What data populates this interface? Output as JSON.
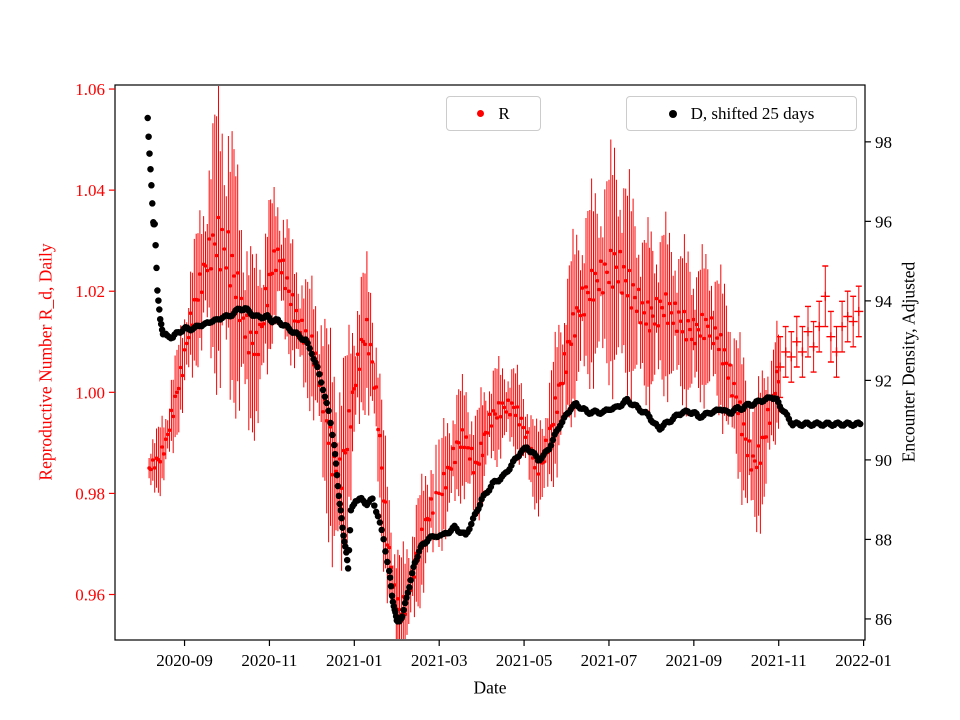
{
  "figure": {
    "background": "#ffffff"
  },
  "chart_data": {
    "type": "scatter",
    "title": "",
    "grid": false,
    "legends": [
      {
        "label": "R",
        "position": "upper-center"
      },
      {
        "label": "D, shifted 25 days",
        "position": "upper-right"
      }
    ],
    "x_axis": {
      "label": "Date",
      "ticks": [
        "2020-09",
        "2020-11",
        "2021-01",
        "2021-03",
        "2021-05",
        "2021-07",
        "2021-09",
        "2021-11",
        "2022-01"
      ],
      "range": [
        "2020-07-12",
        "2022-01-02"
      ]
    },
    "left_axis": {
      "label": "Reproductive Number R_d, Daily",
      "color": "#ff0000",
      "ticks": [
        0.96,
        0.98,
        1.0,
        1.02,
        1.04,
        1.06
      ],
      "range": [
        0.951,
        1.0608
      ]
    },
    "right_axis": {
      "label": "Encounter Density, Adjusted",
      "color": "#000000",
      "ticks": [
        86,
        88,
        90,
        92,
        94,
        96,
        98
      ],
      "range": [
        85.47,
        99.43
      ]
    },
    "series_r": {
      "legend_label": "R",
      "color": "#ff0000",
      "marker": "point-with-errorbars",
      "plus_marker_from": "2021-11-01",
      "points": [
        [
          "2020-08-06",
          0.985,
          0.004
        ],
        [
          "2020-08-10",
          0.986,
          0.004
        ],
        [
          "2020-08-14",
          0.987,
          0.005
        ],
        [
          "2020-08-18",
          0.99,
          0.005
        ],
        [
          "2020-08-22",
          0.995,
          0.006
        ],
        [
          "2020-08-26",
          1.0,
          0.006
        ],
        [
          "2020-08-30",
          1.005,
          0.007
        ],
        [
          "2020-09-04",
          1.012,
          0.008
        ],
        [
          "2020-09-08",
          1.017,
          0.009
        ],
        [
          "2020-09-12",
          1.021,
          0.01
        ],
        [
          "2020-09-16",
          1.025,
          0.012
        ],
        [
          "2020-09-20",
          1.028,
          0.015
        ],
        [
          "2020-09-24",
          1.03,
          0.02
        ],
        [
          "2020-09-28",
          1.029,
          0.022
        ],
        [
          "2020-10-02",
          1.027,
          0.02
        ],
        [
          "2020-10-06",
          1.023,
          0.018
        ],
        [
          "2020-10-10",
          1.018,
          0.016
        ],
        [
          "2020-10-14",
          1.013,
          0.014
        ],
        [
          "2020-10-18",
          1.01,
          0.013
        ],
        [
          "2020-10-22",
          1.009,
          0.012
        ],
        [
          "2020-10-26",
          1.013,
          0.012
        ],
        [
          "2020-10-30",
          1.02,
          0.012
        ],
        [
          "2020-11-03",
          1.025,
          0.01
        ],
        [
          "2020-11-07",
          1.027,
          0.009
        ],
        [
          "2020-11-11",
          1.024,
          0.009
        ],
        [
          "2020-11-15",
          1.02,
          0.009
        ],
        [
          "2020-11-19",
          1.016,
          0.008
        ],
        [
          "2020-11-23",
          1.013,
          0.008
        ],
        [
          "2020-11-27",
          1.011,
          0.008
        ],
        [
          "2020-12-01",
          1.009,
          0.009
        ],
        [
          "2020-12-05",
          1.005,
          0.01
        ],
        [
          "2020-12-09",
          0.999,
          0.012
        ],
        [
          "2020-12-13",
          0.992,
          0.014
        ],
        [
          "2020-12-17",
          0.985,
          0.016
        ],
        [
          "2020-12-21",
          0.983,
          0.016
        ],
        [
          "2020-12-25",
          0.988,
          0.014
        ],
        [
          "2020-12-29",
          0.996,
          0.012
        ],
        [
          "2021-01-02",
          1.003,
          0.011
        ],
        [
          "2021-01-06",
          1.009,
          0.01
        ],
        [
          "2021-01-10",
          1.012,
          0.01
        ],
        [
          "2021-01-14",
          1.006,
          0.01
        ],
        [
          "2021-01-18",
          0.995,
          0.01
        ],
        [
          "2021-01-22",
          0.98,
          0.01
        ],
        [
          "2021-01-26",
          0.968,
          0.009
        ],
        [
          "2021-01-30",
          0.96,
          0.008
        ],
        [
          "2021-02-03",
          0.957,
          0.008
        ],
        [
          "2021-02-07",
          0.958,
          0.008
        ],
        [
          "2021-02-11",
          0.962,
          0.008
        ],
        [
          "2021-02-15",
          0.967,
          0.008
        ],
        [
          "2021-02-19",
          0.971,
          0.008
        ],
        [
          "2021-02-23",
          0.975,
          0.008
        ],
        [
          "2021-02-27",
          0.978,
          0.008
        ],
        [
          "2021-03-03",
          0.981,
          0.008
        ],
        [
          "2021-03-07",
          0.984,
          0.008
        ],
        [
          "2021-03-11",
          0.987,
          0.008
        ],
        [
          "2021-03-15",
          0.99,
          0.008
        ],
        [
          "2021-03-19",
          0.991,
          0.008
        ],
        [
          "2021-03-23",
          0.988,
          0.008
        ],
        [
          "2021-03-27",
          0.985,
          0.008
        ],
        [
          "2021-03-31",
          0.988,
          0.008
        ],
        [
          "2021-04-04",
          0.992,
          0.007
        ],
        [
          "2021-04-08",
          0.995,
          0.007
        ],
        [
          "2021-04-12",
          0.996,
          0.007
        ],
        [
          "2021-04-16",
          0.997,
          0.006
        ],
        [
          "2021-04-20",
          0.997,
          0.006
        ],
        [
          "2021-04-24",
          0.997,
          0.006
        ],
        [
          "2021-04-28",
          0.995,
          0.006
        ],
        [
          "2021-05-02",
          0.992,
          0.006
        ],
        [
          "2021-05-06",
          0.988,
          0.006
        ],
        [
          "2021-05-10",
          0.985,
          0.006
        ],
        [
          "2021-05-14",
          0.986,
          0.007
        ],
        [
          "2021-05-18",
          0.99,
          0.008
        ],
        [
          "2021-05-22",
          0.995,
          0.009
        ],
        [
          "2021-05-26",
          1.0,
          0.01
        ],
        [
          "2021-05-30",
          1.005,
          0.011
        ],
        [
          "2021-06-03",
          1.01,
          0.012
        ],
        [
          "2021-06-07",
          1.014,
          0.012
        ],
        [
          "2021-06-11",
          1.017,
          0.012
        ],
        [
          "2021-06-15",
          1.019,
          0.013
        ],
        [
          "2021-06-19",
          1.021,
          0.013
        ],
        [
          "2021-06-23",
          1.022,
          0.013
        ],
        [
          "2021-06-27",
          1.023,
          0.014
        ],
        [
          "2021-07-01",
          1.024,
          0.015
        ],
        [
          "2021-07-05",
          1.025,
          0.017
        ],
        [
          "2021-07-09",
          1.024,
          0.016
        ],
        [
          "2021-07-13",
          1.022,
          0.015
        ],
        [
          "2021-07-17",
          1.02,
          0.014
        ],
        [
          "2021-07-21",
          1.018,
          0.013
        ],
        [
          "2021-07-25",
          1.016,
          0.012
        ],
        [
          "2021-07-29",
          1.015,
          0.012
        ],
        [
          "2021-08-02",
          1.015,
          0.012
        ],
        [
          "2021-08-06",
          1.016,
          0.012
        ],
        [
          "2021-08-10",
          1.017,
          0.012
        ],
        [
          "2021-08-14",
          1.016,
          0.011
        ],
        [
          "2021-08-18",
          1.015,
          0.011
        ],
        [
          "2021-08-22",
          1.014,
          0.011
        ],
        [
          "2021-08-26",
          1.013,
          0.011
        ],
        [
          "2021-08-30",
          1.012,
          0.01
        ],
        [
          "2021-09-03",
          1.012,
          0.01
        ],
        [
          "2021-09-07",
          1.013,
          0.01
        ],
        [
          "2021-09-11",
          1.013,
          0.01
        ],
        [
          "2021-09-15",
          1.012,
          0.01
        ],
        [
          "2021-09-19",
          1.01,
          0.01
        ],
        [
          "2021-09-23",
          1.007,
          0.01
        ],
        [
          "2021-09-27",
          1.003,
          0.01
        ],
        [
          "2021-10-01",
          0.999,
          0.01
        ],
        [
          "2021-10-05",
          0.994,
          0.01
        ],
        [
          "2021-10-09",
          0.989,
          0.01
        ],
        [
          "2021-10-13",
          0.986,
          0.01
        ],
        [
          "2021-10-17",
          0.987,
          0.01
        ],
        [
          "2021-10-21",
          0.991,
          0.01
        ],
        [
          "2021-10-25",
          0.996,
          0.009
        ],
        [
          "2021-10-29",
          1.001,
          0.008
        ],
        [
          "2021-11-02",
          1.005,
          0.006
        ],
        [
          "2021-11-06",
          1.008,
          0.005
        ],
        [
          "2021-11-10",
          1.007,
          0.005
        ],
        [
          "2021-11-14",
          1.01,
          0.005
        ],
        [
          "2021-11-18",
          1.008,
          0.005
        ],
        [
          "2021-11-22",
          1.012,
          0.005
        ],
        [
          "2021-11-26",
          1.009,
          0.005
        ],
        [
          "2021-11-30",
          1.013,
          0.005
        ],
        [
          "2021-12-04",
          1.019,
          0.006
        ],
        [
          "2021-12-08",
          1.011,
          0.005
        ],
        [
          "2021-12-12",
          1.008,
          0.005
        ],
        [
          "2021-12-16",
          1.013,
          0.005
        ],
        [
          "2021-12-20",
          1.015,
          0.005
        ],
        [
          "2021-12-24",
          1.014,
          0.005
        ],
        [
          "2021-12-28",
          1.016,
          0.005
        ]
      ]
    },
    "series_d": {
      "legend_label": "D, shifted 25 days",
      "color": "#000000",
      "marker": "point",
      "points": [
        [
          "2020-08-05",
          98.6
        ],
        [
          "2020-08-07",
          97.3
        ],
        [
          "2020-08-09",
          96.0
        ],
        [
          "2020-08-10",
          95.9
        ],
        [
          "2020-08-12",
          94.3
        ],
        [
          "2020-08-14",
          93.5
        ],
        [
          "2020-08-16",
          93.2
        ],
        [
          "2020-08-19",
          93.1
        ],
        [
          "2020-08-23",
          93.1
        ],
        [
          "2020-08-27",
          93.2
        ],
        [
          "2020-08-31",
          93.3
        ],
        [
          "2020-09-04",
          93.3
        ],
        [
          "2020-09-08",
          93.3
        ],
        [
          "2020-09-12",
          93.4
        ],
        [
          "2020-09-16",
          93.4
        ],
        [
          "2020-09-20",
          93.5
        ],
        [
          "2020-09-24",
          93.5
        ],
        [
          "2020-09-28",
          93.6
        ],
        [
          "2020-10-02",
          93.6
        ],
        [
          "2020-10-06",
          93.7
        ],
        [
          "2020-10-10",
          93.8
        ],
        [
          "2020-10-14",
          93.8
        ],
        [
          "2020-10-18",
          93.7
        ],
        [
          "2020-10-22",
          93.6
        ],
        [
          "2020-10-26",
          93.6
        ],
        [
          "2020-10-30",
          93.6
        ],
        [
          "2020-11-03",
          93.5
        ],
        [
          "2020-11-07",
          93.5
        ],
        [
          "2020-11-11",
          93.4
        ],
        [
          "2020-11-15",
          93.3
        ],
        [
          "2020-11-19",
          93.2
        ],
        [
          "2020-11-23",
          93.1
        ],
        [
          "2020-11-27",
          93.0
        ],
        [
          "2020-12-01",
          92.7
        ],
        [
          "2020-12-05",
          92.3
        ],
        [
          "2020-12-09",
          91.8
        ],
        [
          "2020-12-13",
          91.2
        ],
        [
          "2020-12-17",
          90.4
        ],
        [
          "2020-12-19",
          89.6
        ],
        [
          "2020-12-21",
          88.9
        ],
        [
          "2020-12-23",
          88.3
        ],
        [
          "2020-12-25",
          87.8
        ],
        [
          "2020-12-27",
          87.3
        ],
        [
          "2020-12-29",
          88.7
        ],
        [
          "2021-01-02",
          89.0
        ],
        [
          "2021-01-06",
          89.0
        ],
        [
          "2021-01-10",
          88.9
        ],
        [
          "2021-01-14",
          89.0
        ],
        [
          "2021-01-18",
          88.6
        ],
        [
          "2021-01-22",
          88.0
        ],
        [
          "2021-01-26",
          87.2
        ],
        [
          "2021-01-28",
          86.6
        ],
        [
          "2021-01-30",
          86.2
        ],
        [
          "2021-02-01",
          86.0
        ],
        [
          "2021-02-03",
          85.9
        ],
        [
          "2021-02-05",
          86.1
        ],
        [
          "2021-02-08",
          86.5
        ],
        [
          "2021-02-11",
          87.0
        ],
        [
          "2021-02-14",
          87.4
        ],
        [
          "2021-02-17",
          87.7
        ],
        [
          "2021-02-20",
          87.9
        ],
        [
          "2021-02-24",
          88.0
        ],
        [
          "2021-02-28",
          88.1
        ],
        [
          "2021-03-04",
          88.1
        ],
        [
          "2021-03-08",
          88.2
        ],
        [
          "2021-03-12",
          88.3
        ],
        [
          "2021-03-16",
          88.2
        ],
        [
          "2021-03-20",
          88.1
        ],
        [
          "2021-03-24",
          88.4
        ],
        [
          "2021-03-28",
          88.7
        ],
        [
          "2021-04-01",
          89.0
        ],
        [
          "2021-04-05",
          89.2
        ],
        [
          "2021-04-09",
          89.4
        ],
        [
          "2021-04-13",
          89.5
        ],
        [
          "2021-04-17",
          89.6
        ],
        [
          "2021-04-21",
          89.8
        ],
        [
          "2021-04-25",
          90.0
        ],
        [
          "2021-04-29",
          90.2
        ],
        [
          "2021-05-03",
          90.3
        ],
        [
          "2021-05-07",
          90.2
        ],
        [
          "2021-05-11",
          90.0
        ],
        [
          "2021-05-15",
          90.1
        ],
        [
          "2021-05-19",
          90.3
        ],
        [
          "2021-05-23",
          90.6
        ],
        [
          "2021-05-27",
          90.9
        ],
        [
          "2021-05-31",
          91.1
        ],
        [
          "2021-06-04",
          91.3
        ],
        [
          "2021-06-08",
          91.4
        ],
        [
          "2021-06-12",
          91.3
        ],
        [
          "2021-06-16",
          91.2
        ],
        [
          "2021-06-20",
          91.2
        ],
        [
          "2021-06-24",
          91.2
        ],
        [
          "2021-06-28",
          91.2
        ],
        [
          "2021-07-02",
          91.3
        ],
        [
          "2021-07-06",
          91.3
        ],
        [
          "2021-07-10",
          91.4
        ],
        [
          "2021-07-14",
          91.5
        ],
        [
          "2021-07-18",
          91.4
        ],
        [
          "2021-07-22",
          91.3
        ],
        [
          "2021-07-26",
          91.2
        ],
        [
          "2021-07-30",
          91.1
        ],
        [
          "2021-08-03",
          90.9
        ],
        [
          "2021-08-07",
          90.8
        ],
        [
          "2021-08-11",
          90.9
        ],
        [
          "2021-08-15",
          91.0
        ],
        [
          "2021-08-19",
          91.1
        ],
        [
          "2021-08-23",
          91.2
        ],
        [
          "2021-08-27",
          91.2
        ],
        [
          "2021-08-31",
          91.2
        ],
        [
          "2021-09-04",
          91.1
        ],
        [
          "2021-09-08",
          91.1
        ],
        [
          "2021-09-12",
          91.2
        ],
        [
          "2021-09-16",
          91.2
        ],
        [
          "2021-09-20",
          91.3
        ],
        [
          "2021-09-24",
          91.2
        ],
        [
          "2021-09-28",
          91.2
        ],
        [
          "2021-10-02",
          91.3
        ],
        [
          "2021-10-06",
          91.3
        ],
        [
          "2021-10-10",
          91.4
        ],
        [
          "2021-10-14",
          91.4
        ],
        [
          "2021-10-18",
          91.5
        ],
        [
          "2021-10-22",
          91.5
        ],
        [
          "2021-10-26",
          91.6
        ],
        [
          "2021-10-30",
          91.5
        ],
        [
          "2021-11-03",
          91.3
        ],
        [
          "2021-11-07",
          91.1
        ],
        [
          "2021-11-11",
          90.9
        ],
        [
          "2021-11-15",
          90.9
        ],
        [
          "2021-11-19",
          90.9
        ],
        [
          "2021-11-23",
          90.9
        ],
        [
          "2021-11-27",
          90.9
        ],
        [
          "2021-12-01",
          90.9
        ],
        [
          "2021-12-05",
          90.9
        ],
        [
          "2021-12-09",
          90.9
        ],
        [
          "2021-12-13",
          90.9
        ],
        [
          "2021-12-17",
          90.9
        ],
        [
          "2021-12-21",
          90.9
        ],
        [
          "2021-12-25",
          90.9
        ],
        [
          "2021-12-29",
          90.9
        ]
      ]
    }
  }
}
